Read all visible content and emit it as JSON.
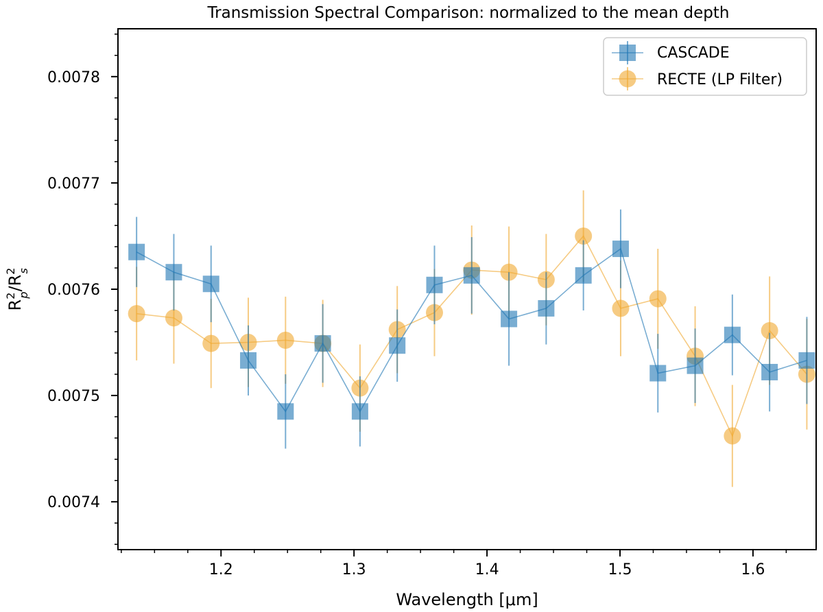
{
  "chart_data": {
    "type": "scatter",
    "title": "Transmission Spectral Comparison: normalized to the mean depth",
    "xlabel": "Wavelength [μm]",
    "ylabel": {
      "base": "R",
      "sup1": "2",
      "sub1": "p",
      "slash": "/R",
      "sup2": "2",
      "sub2": "s"
    },
    "xlim": [
      1.1225,
      1.6475
    ],
    "ylim": [
      0.007355,
      0.007845
    ],
    "xticks": [
      1.2,
      1.3,
      1.4,
      1.5,
      1.6
    ],
    "xtick_labels": [
      "1.2",
      "1.3",
      "1.4",
      "1.5",
      "1.6"
    ],
    "yticks": [
      0.0074,
      0.0075,
      0.0076,
      0.0077,
      0.0078
    ],
    "ytick_labels": [
      "0.0074",
      "0.0075",
      "0.0076",
      "0.0077",
      "0.0078"
    ],
    "grid": false,
    "legend_position": "top-right",
    "series": [
      {
        "name": "CASCADE",
        "marker": "square",
        "color": "#1f77b4",
        "x": [
          1.1365,
          1.1645,
          1.1925,
          1.2205,
          1.2485,
          1.2765,
          1.3045,
          1.3325,
          1.3605,
          1.3885,
          1.4165,
          1.4445,
          1.4725,
          1.5005,
          1.5285,
          1.5565,
          1.5845,
          1.6125,
          1.6405
        ],
        "y": [
          0.007635,
          0.007616,
          0.007605,
          0.007533,
          0.007485,
          0.007549,
          0.007485,
          0.007547,
          0.007604,
          0.007613,
          0.007572,
          0.007582,
          0.007613,
          0.007638,
          0.007521,
          0.007528,
          0.007557,
          0.007522,
          0.007533
        ],
        "yerr": [
          3.3e-05,
          3.6e-05,
          3.6e-05,
          3.3e-05,
          3.5e-05,
          3.7e-05,
          3.3e-05,
          3.4e-05,
          3.7e-05,
          3.6e-05,
          4.4e-05,
          3.4e-05,
          3.3e-05,
          3.7e-05,
          3.7e-05,
          3.5e-05,
          3.8e-05,
          3.7e-05,
          4.1e-05
        ]
      },
      {
        "name": "RECTE (LP Filter)",
        "marker": "circle",
        "color": "#f0a830",
        "x": [
          1.1365,
          1.1645,
          1.1925,
          1.2205,
          1.2485,
          1.2765,
          1.3045,
          1.3325,
          1.3605,
          1.3885,
          1.4165,
          1.4445,
          1.4725,
          1.5005,
          1.5285,
          1.5565,
          1.5845,
          1.6125,
          1.6405
        ],
        "y": [
          0.007577,
          0.007573,
          0.007549,
          0.00755,
          0.007552,
          0.007549,
          0.007507,
          0.007562,
          0.007578,
          0.007618,
          0.007616,
          0.007609,
          0.00765,
          0.007582,
          0.007591,
          0.007537,
          0.007462,
          0.007561,
          0.00752
        ],
        "yerr": [
          4.4e-05,
          4.3e-05,
          4.2e-05,
          4.2e-05,
          4.1e-05,
          4.1e-05,
          4.1e-05,
          4.1e-05,
          4.1e-05,
          4.2e-05,
          4.3e-05,
          4.3e-05,
          4.3e-05,
          4.5e-05,
          4.7e-05,
          4.7e-05,
          4.8e-05,
          5.1e-05,
          5.2e-05
        ]
      }
    ]
  }
}
